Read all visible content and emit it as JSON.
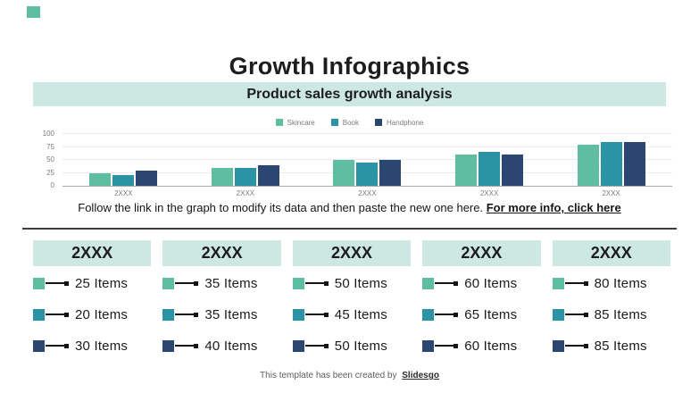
{
  "slide": {
    "title": "Growth Infographics",
    "footer": {
      "prefix": "This template has been created by",
      "brand": "Slidesgo"
    }
  },
  "banner": {
    "label": "Product sales growth analysis"
  },
  "chart_note": {
    "text": "Follow the link in the graph to modify its data and then paste the new one here.",
    "link_label": "For more info, click here"
  },
  "chart_data": {
    "type": "bar",
    "title": "Product sales growth analysis",
    "categories": [
      "2XXX",
      "2XXX",
      "2XXX",
      "2XXX",
      "2XXX"
    ],
    "series": [
      {
        "name": "Skincare",
        "color": "#5fbda1",
        "values": [
          25,
          35,
          50,
          60,
          80
        ]
      },
      {
        "name": "Book",
        "color": "#2b93a4",
        "values": [
          20,
          35,
          45,
          65,
          85
        ]
      },
      {
        "name": "Handphone",
        "color": "#2b4670",
        "values": [
          30,
          40,
          50,
          60,
          85
        ]
      }
    ],
    "xlabel": "",
    "ylabel": "",
    "ylim": [
      0,
      100
    ],
    "yticks": [
      0,
      25,
      50,
      75,
      100
    ],
    "grid": true,
    "legend_position": "top"
  },
  "columns": [
    {
      "header": "2XXX",
      "items": [
        {
          "label": "25 Items",
          "color": "#5fbda1"
        },
        {
          "label": "20 Items",
          "color": "#2b93a4"
        },
        {
          "label": "30 Items",
          "color": "#2b4670"
        }
      ]
    },
    {
      "header": "2XXX",
      "items": [
        {
          "label": "35 Items",
          "color": "#5fbda1"
        },
        {
          "label": "35 Items",
          "color": "#2b93a4"
        },
        {
          "label": "40 Items",
          "color": "#2b4670"
        }
      ]
    },
    {
      "header": "2XXX",
      "items": [
        {
          "label": "50 Items",
          "color": "#5fbda1"
        },
        {
          "label": "45 Items",
          "color": "#2b93a4"
        },
        {
          "label": "50 Items",
          "color": "#2b4670"
        }
      ]
    },
    {
      "header": "2XXX",
      "items": [
        {
          "label": "60 Items",
          "color": "#5fbda1"
        },
        {
          "label": "65 Items",
          "color": "#2b93a4"
        },
        {
          "label": "60 Items",
          "color": "#2b4670"
        }
      ]
    },
    {
      "header": "2XXX",
      "items": [
        {
          "label": "80 Items",
          "color": "#5fbda1"
        },
        {
          "label": "85 Items",
          "color": "#2b93a4"
        },
        {
          "label": "85 Items",
          "color": "#2b4670"
        }
      ]
    }
  ],
  "colors": {
    "accent_mint": "#cde8e2",
    "series_green": "#5fbda1",
    "series_teal": "#2b93a4",
    "series_navy": "#2b4670"
  }
}
